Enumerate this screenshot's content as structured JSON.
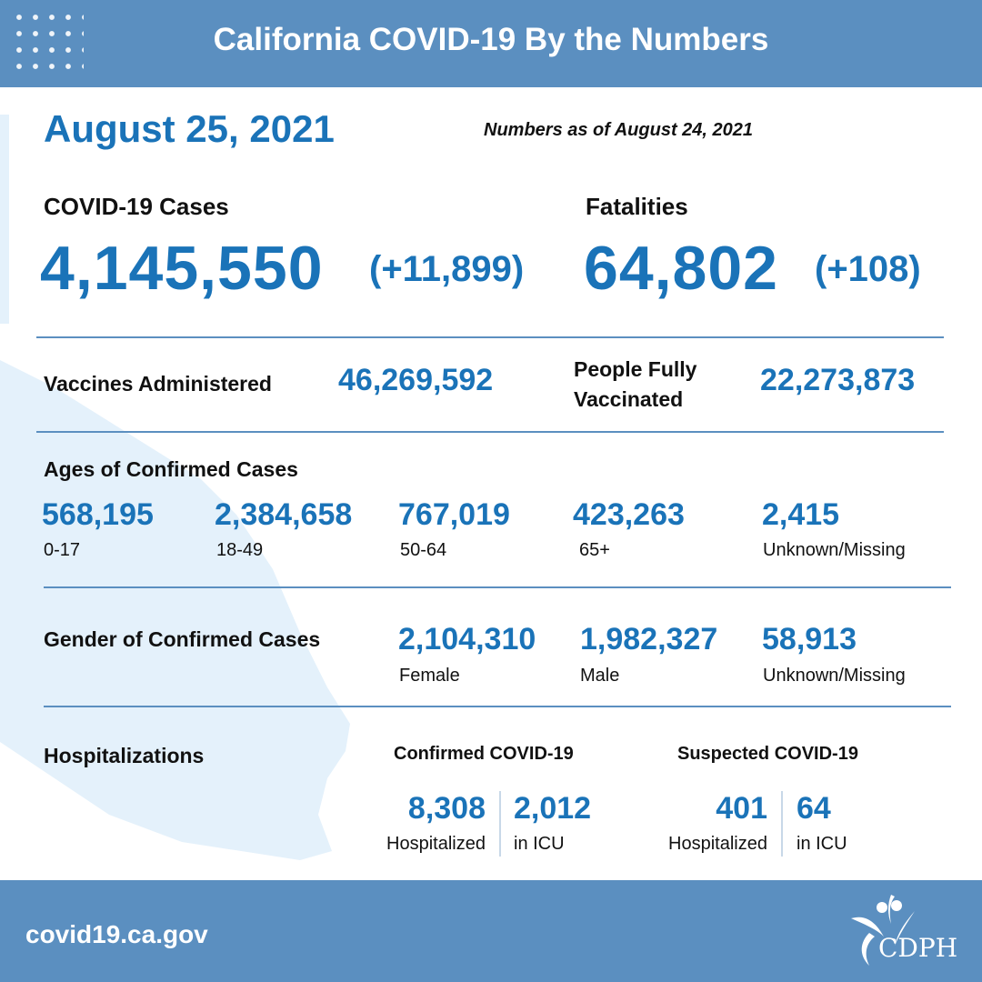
{
  "header": {
    "title": "California COVID-19 By the Numbers"
  },
  "date": "August 25, 2021",
  "as_of": "Numbers as of August 24, 2021",
  "cases": {
    "label": "COVID-19 Cases",
    "total": "4,145,550",
    "delta": "(+11,899)"
  },
  "fatalities": {
    "label": "Fatalities",
    "total": "64,802",
    "delta": "(+108)"
  },
  "vaccines": {
    "administered_label": "Vaccines Administered",
    "administered": "46,269,592",
    "fully_label_line1": "People Fully",
    "fully_label_line2": "Vaccinated",
    "fully": "22,273,873"
  },
  "ages": {
    "label": "Ages of Confirmed Cases",
    "groups": [
      {
        "value": "568,195",
        "label": "0-17"
      },
      {
        "value": "2,384,658",
        "label": "18-49"
      },
      {
        "value": "767,019",
        "label": "50-64"
      },
      {
        "value": "423,263",
        "label": "65+"
      },
      {
        "value": "2,415",
        "label": "Unknown/Missing"
      }
    ]
  },
  "gender": {
    "label": "Gender of Confirmed Cases",
    "groups": [
      {
        "value": "2,104,310",
        "label": "Female"
      },
      {
        "value": "1,982,327",
        "label": "Male"
      },
      {
        "value": "58,913",
        "label": "Unknown/Missing"
      }
    ]
  },
  "hospitalizations": {
    "label": "Hospitalizations",
    "confirmed": {
      "title": "Confirmed COVID-19",
      "hospitalized": "8,308",
      "hospitalized_label": "Hospitalized",
      "icu": "2,012",
      "icu_label": "in ICU"
    },
    "suspected": {
      "title": "Suspected COVID-19",
      "hospitalized": "401",
      "hospitalized_label": "Hospitalized",
      "icu": "64",
      "icu_label": "in ICU"
    }
  },
  "footer": {
    "url": "covid19.ca.gov",
    "logo_text": "CDPH"
  },
  "colors": {
    "header_bg": "#5b8fc0",
    "number_blue": "#1a73b8",
    "map_tint": "#e4f1fb"
  }
}
